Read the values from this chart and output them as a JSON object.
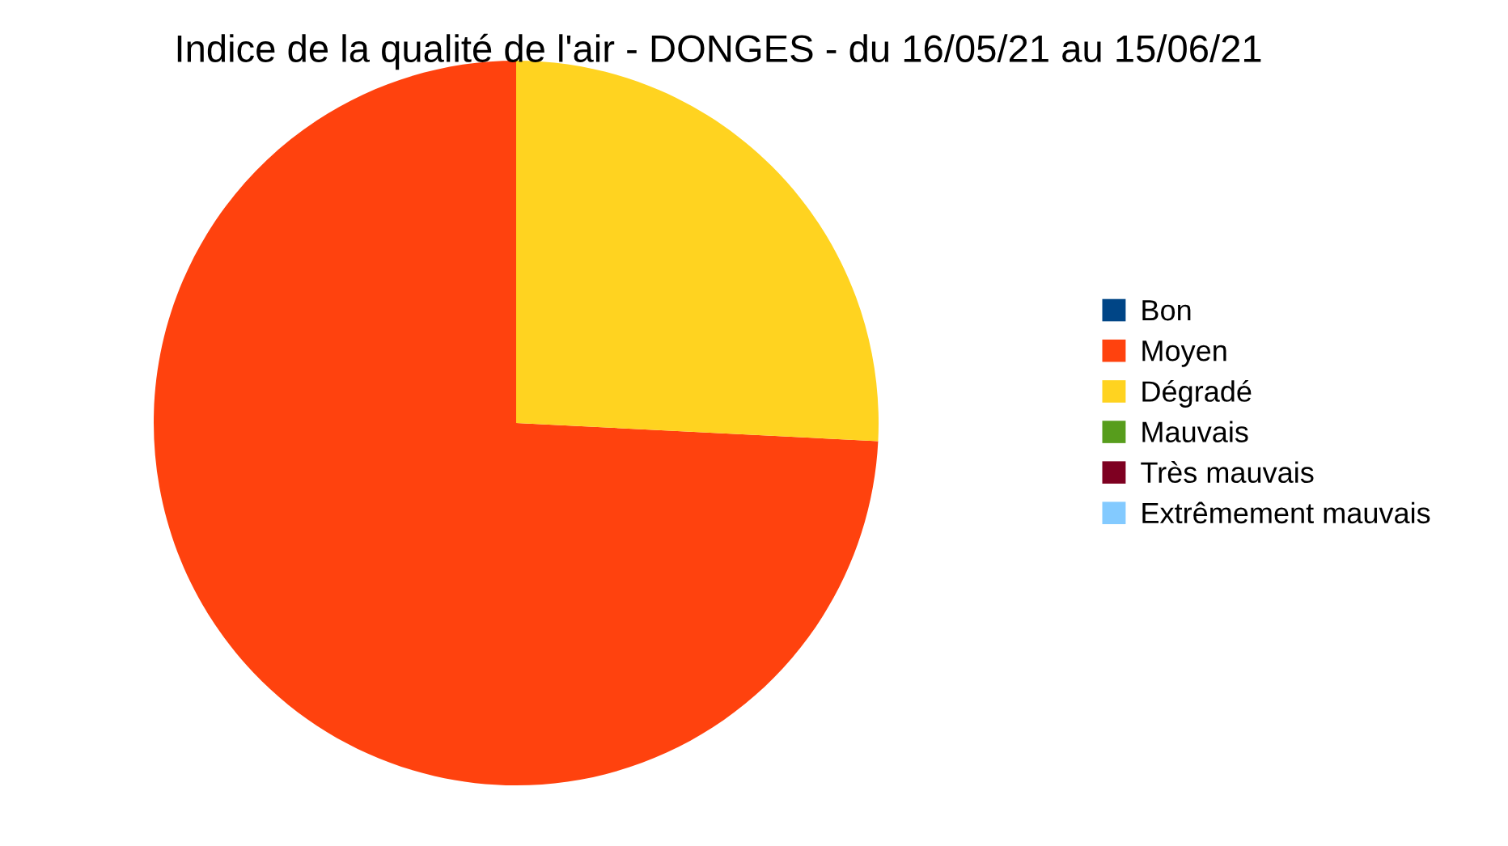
{
  "chart_data": {
    "type": "pie",
    "title": "Indice de la qualité de l'air - DONGES - du 16/05/21 au 15/06/21",
    "categories": [
      "Bon",
      "Moyen",
      "Dégradé",
      "Mauvais",
      "Très mauvais",
      "Extrêmement mauvais"
    ],
    "values": [
      0,
      74.2,
      25.8,
      0,
      0,
      0
    ],
    "colors": [
      "#004586",
      "#ff420e",
      "#ffd320",
      "#579d1c",
      "#7e0021",
      "#83caff"
    ],
    "legend": "right"
  }
}
